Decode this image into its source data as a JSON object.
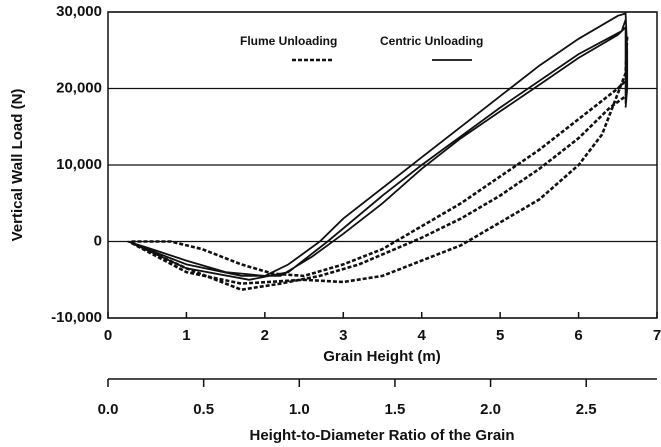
{
  "chart_data": {
    "type": "line",
    "ylabel": "Vertical Wall Load (N)",
    "xlabel": "Grain Height (m)",
    "x2label": "Height-to-Diameter Ratio of the Grain",
    "xlim": [
      0,
      7
    ],
    "xticks": [
      0,
      1,
      2,
      3,
      4,
      5,
      6,
      7
    ],
    "x2lim": [
      0,
      2.87
    ],
    "x2ticks": [
      {
        "value": 0,
        "label": "0.0"
      },
      {
        "value": 0.5,
        "label": "0.5"
      },
      {
        "value": 1,
        "label": "1.0"
      },
      {
        "value": 1.5,
        "label": "1.5"
      },
      {
        "value": 2,
        "label": "2.0"
      },
      {
        "value": 2.5,
        "label": "2.5"
      }
    ],
    "ylim": [
      -10000,
      30000
    ],
    "yticks": [
      {
        "value": -10000,
        "label": "-10,000"
      },
      0,
      {
        "value": 10000,
        "label": "10,000"
      },
      {
        "value": 20000,
        "label": "20,000"
      },
      {
        "value": 30000,
        "label": "30,000"
      }
    ],
    "grid": true,
    "legend": "top",
    "series": [
      {
        "name": "Flume Unloading",
        "color": "#111111",
        "dash": true,
        "x": [
          0.3,
          0.8,
          1.2,
          1.7,
          2.1,
          2.5,
          3,
          3.5,
          4,
          4.5,
          5,
          5.5,
          6,
          6.5,
          6.6,
          null,
          0.3,
          1,
          1.7,
          2.2,
          2.7,
          3.2,
          4,
          4.5,
          5,
          5.5,
          6,
          6.4,
          6.6,
          null,
          0.3,
          1,
          1.7,
          2.5,
          3,
          3.5,
          4,
          4.5,
          5,
          5.5,
          6,
          6.3,
          6.6,
          6.62
        ],
        "values": [
          0,
          0,
          -1000,
          -3000,
          -4200,
          -4500,
          -3000,
          -1000,
          2000,
          5000,
          8500,
          12000,
          16000,
          20000,
          21000,
          null,
          -200,
          -3500,
          -6300,
          -5500,
          -4500,
          -3000,
          500,
          3000,
          6000,
          9500,
          13500,
          17500,
          19000,
          null,
          -200,
          -4000,
          -5500,
          -5000,
          -5300,
          -4500,
          -2500,
          -500,
          2500,
          5500,
          10000,
          14000,
          22000,
          27000
        ]
      },
      {
        "name": "Centric Unloading",
        "color": "#111111",
        "dash": false,
        "x": [
          0.25,
          0.5,
          1,
          1.5,
          2,
          2.3,
          2.7,
          3,
          3.5,
          4,
          4.5,
          5,
          5.5,
          6,
          6.5,
          6.6,
          6.62,
          6.62,
          6.6,
          null,
          0.3,
          1,
          1.7,
          2.2,
          2.6,
          3,
          3.5,
          4,
          4.5,
          5,
          5.5,
          6,
          6.5,
          6.6,
          6.6,
          null,
          0.3,
          1,
          1.8,
          2.3,
          2.8,
          3.5,
          4,
          5,
          6,
          6.55,
          6.6
        ],
        "values": [
          0,
          -800,
          -2500,
          -4000,
          -4500,
          -3000,
          0,
          3000,
          7000,
          11000,
          15000,
          19000,
          23000,
          26500,
          29500,
          29800,
          25000,
          20000,
          17500,
          null,
          -200,
          -3000,
          -4500,
          -4500,
          -2000,
          1000,
          5000,
          9500,
          13500,
          17000,
          20500,
          24000,
          27000,
          28000,
          18000,
          null,
          -200,
          -3500,
          -5000,
          -4000,
          0,
          6000,
          10000,
          17500,
          24500,
          27500,
          29000
        ]
      }
    ]
  }
}
